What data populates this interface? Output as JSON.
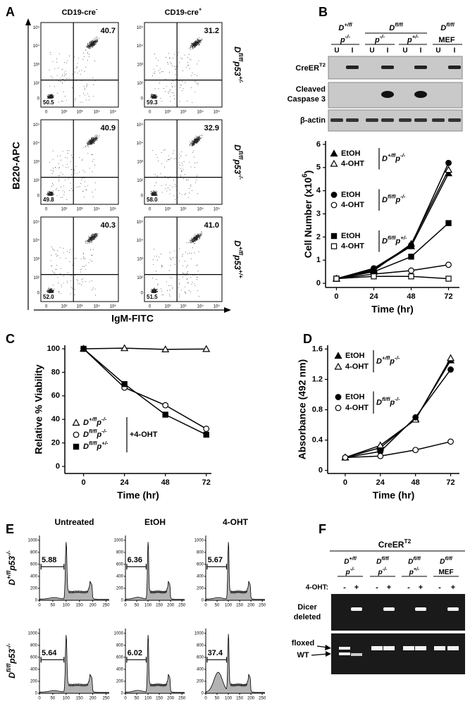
{
  "panel_labels": [
    "A",
    "B",
    "C",
    "D",
    "E",
    "F"
  ],
  "panel_a": {
    "columns": [
      [
        "CD19-cre",
        "-"
      ],
      [
        "CD19-cre",
        "+"
      ]
    ],
    "row_labels": [
      [
        "D",
        "fl/fl",
        "p53",
        "+/-"
      ],
      [
        "D",
        "fl/fl",
        "p53",
        "-/-"
      ],
      [
        "D",
        "+/fl",
        "p53",
        "+/+"
      ]
    ],
    "percent_high": [
      [
        "40.7",
        "31.2"
      ],
      [
        "40.9",
        "32.9"
      ],
      [
        "40.3",
        "41.0"
      ]
    ],
    "percent_low": [
      [
        "50.5",
        "59.3"
      ],
      [
        "49.8",
        "58.0"
      ],
      [
        "52.0",
        "51.5"
      ]
    ],
    "yticks": [
      "10⁵",
      "10⁴",
      "10³",
      "10²",
      "0"
    ],
    "xticks": [
      "0",
      "10²",
      "10³",
      "10⁴",
      "10⁵"
    ],
    "ylabel": "B220-APC",
    "xlabel": "IgM-FITC"
  },
  "panel_b_blot": {
    "groups": [
      [
        "D",
        "+/fl"
      ],
      [
        "D",
        "fl/fl"
      ],
      [
        "D",
        "fl/fl"
      ]
    ],
    "subgroups": [
      [
        "p",
        "-/-"
      ],
      [
        "p",
        "-/-"
      ],
      [
        "p",
        "+/-"
      ],
      [
        "MEF"
      ]
    ],
    "lanes": [
      "U",
      "I",
      "U",
      "I",
      "U",
      "I",
      "U",
      "I"
    ],
    "rows": [
      [
        "CreER",
        "T2"
      ],
      [
        "Cleaved"
      ],
      [
        "Caspase 3"
      ],
      [
        "β-actin"
      ]
    ]
  },
  "chart_data": [
    {
      "type": "line",
      "xlabel": "Time (hr)",
      "ylabel": [
        "Cell Number (x10",
        "6",
        ")"
      ],
      "x": [
        0,
        24,
        48,
        72
      ],
      "xlim": [
        -7,
        79
      ],
      "xticks": [
        0,
        24,
        48,
        72
      ],
      "ylim": [
        -0.18,
        6.15
      ],
      "yticks": [
        0,
        1,
        2,
        3,
        4,
        5,
        6
      ],
      "groups": [
        {
          "label": [
            "D",
            "+/fl",
            "p",
            "-/-"
          ],
          "series": [
            {
              "name": "EtOH",
              "marker": "triangle",
              "filled": true,
              "color": "#000000",
              "values": [
                0.2,
                0.6,
                1.6,
                4.75
              ]
            },
            {
              "name": "4-OHT",
              "marker": "triangle",
              "filled": false,
              "color": "#000000",
              "values": [
                0.2,
                0.55,
                1.7,
                4.9
              ]
            }
          ]
        },
        {
          "label": [
            "D",
            "fl/fl",
            "p",
            "-/-"
          ],
          "series": [
            {
              "name": "EtOH",
              "marker": "circle",
              "filled": true,
              "color": "#000000",
              "values": [
                0.2,
                0.65,
                1.65,
                5.2
              ]
            },
            {
              "name": "4-OHT",
              "marker": "circle",
              "filled": false,
              "color": "#000000",
              "values": [
                0.2,
                0.4,
                0.55,
                0.8
              ]
            }
          ]
        },
        {
          "label": [
            "D",
            "fl/fl",
            "p",
            "+/-"
          ],
          "series": [
            {
              "name": "EtOH",
              "marker": "square",
              "filled": true,
              "color": "#000000",
              "values": [
                0.2,
                0.5,
                1.15,
                2.6
              ]
            },
            {
              "name": "4-OHT",
              "marker": "square",
              "filled": false,
              "color": "#000000",
              "values": [
                0.2,
                0.3,
                0.3,
                0.2
              ]
            }
          ]
        }
      ]
    },
    {
      "type": "line",
      "xlabel": "Time (hr)",
      "ylabel": "Relative % Viability",
      "x": [
        0,
        24,
        48,
        72
      ],
      "xlim": [
        -11,
        75
      ],
      "xticks": [
        0,
        24,
        48,
        72
      ],
      "ylim": [
        -6,
        103
      ],
      "yticks": [
        0,
        20,
        40,
        60,
        80,
        100
      ],
      "legend_note": "+4-OHT",
      "series": [
        {
          "name": [
            "D",
            "+/fl",
            "p",
            "-/-"
          ],
          "marker": "triangle",
          "filled": false,
          "color": "#000000",
          "values": [
            100,
            100.5,
            99.5,
            99.8
          ]
        },
        {
          "name": [
            "D",
            "fl/fl",
            "p",
            "-/-"
          ],
          "marker": "circle",
          "filled": false,
          "color": "#000000",
          "values": [
            100,
            67,
            52,
            32
          ]
        },
        {
          "name": [
            "D",
            "fl/fl",
            "p",
            "+/-"
          ],
          "marker": "square",
          "filled": true,
          "color": "#000000",
          "values": [
            100,
            70,
            44,
            27
          ]
        }
      ]
    },
    {
      "type": "line",
      "xlabel": "Time (hr)",
      "ylabel": "Absorbance (492 nm)",
      "x": [
        0,
        24,
        48,
        72
      ],
      "xlim": [
        -12,
        78
      ],
      "xticks": [
        0,
        24,
        48,
        72
      ],
      "ylim": [
        -0.04,
        1.65
      ],
      "yticks": [
        0,
        0.4,
        0.8,
        1.2,
        1.6
      ],
      "groups": [
        {
          "label": [
            "D",
            "+/fl",
            "p",
            "-/-"
          ],
          "series": [
            {
              "name": "EtOH",
              "marker": "triangle",
              "filled": true,
              "color": "#000000",
              "values": [
                0.17,
                0.3,
                0.68,
                1.45
              ]
            },
            {
              "name": "4-OHT",
              "marker": "triangle",
              "filled": false,
              "color": "#000000",
              "values": [
                0.17,
                0.33,
                0.67,
                1.48
              ]
            }
          ]
        },
        {
          "label": [
            "D",
            "fl/fl",
            "p",
            "-/-"
          ],
          "series": [
            {
              "name": "EtOH",
              "marker": "circle",
              "filled": true,
              "color": "#000000",
              "values": [
                0.17,
                0.25,
                0.7,
                1.33
              ]
            },
            {
              "name": "4-OHT",
              "marker": "circle",
              "filled": false,
              "color": "#000000",
              "values": [
                0.17,
                0.19,
                0.27,
                0.38
              ]
            }
          ]
        }
      ]
    }
  ],
  "panel_e": {
    "columns": [
      "Untreated",
      "EtOH",
      "4-OHT"
    ],
    "row_labels": [
      [
        "D",
        "+/fl",
        "p53",
        "-/-"
      ],
      [
        "D",
        "fl/fl",
        "p53",
        "-/-"
      ]
    ],
    "gate_values": [
      [
        "5.88",
        "6.36",
        "5.67"
      ],
      [
        "5.64",
        "6.02",
        "37.4"
      ]
    ],
    "ylim": [
      0,
      1080
    ],
    "yticks": [
      0,
      200,
      400,
      600,
      800,
      1000
    ],
    "xlim": [
      0,
      262
    ],
    "xticks": [
      0,
      50,
      100,
      150,
      200,
      250
    ]
  },
  "panel_f": {
    "title": [
      "CreER",
      "T2"
    ],
    "groups": [
      [
        [
          "D",
          "+/fl"
        ],
        [
          "p",
          "-/-"
        ]
      ],
      [
        [
          "D",
          "fl/fl"
        ],
        [
          "p",
          "-/-"
        ]
      ],
      [
        [
          "D",
          "fl/fl"
        ],
        [
          "p",
          "+/-"
        ]
      ],
      [
        [
          "D",
          "fl/fl"
        ],
        [
          "MEF"
        ]
      ]
    ],
    "treatment_label": "4-OHT:",
    "signs": [
      "-",
      "+",
      "-",
      "+",
      "-",
      "+",
      "-",
      "+"
    ],
    "deleted_label": [
      "Dicer",
      "deleted"
    ],
    "floxed_label": "floxed",
    "wt_label": "WT"
  }
}
